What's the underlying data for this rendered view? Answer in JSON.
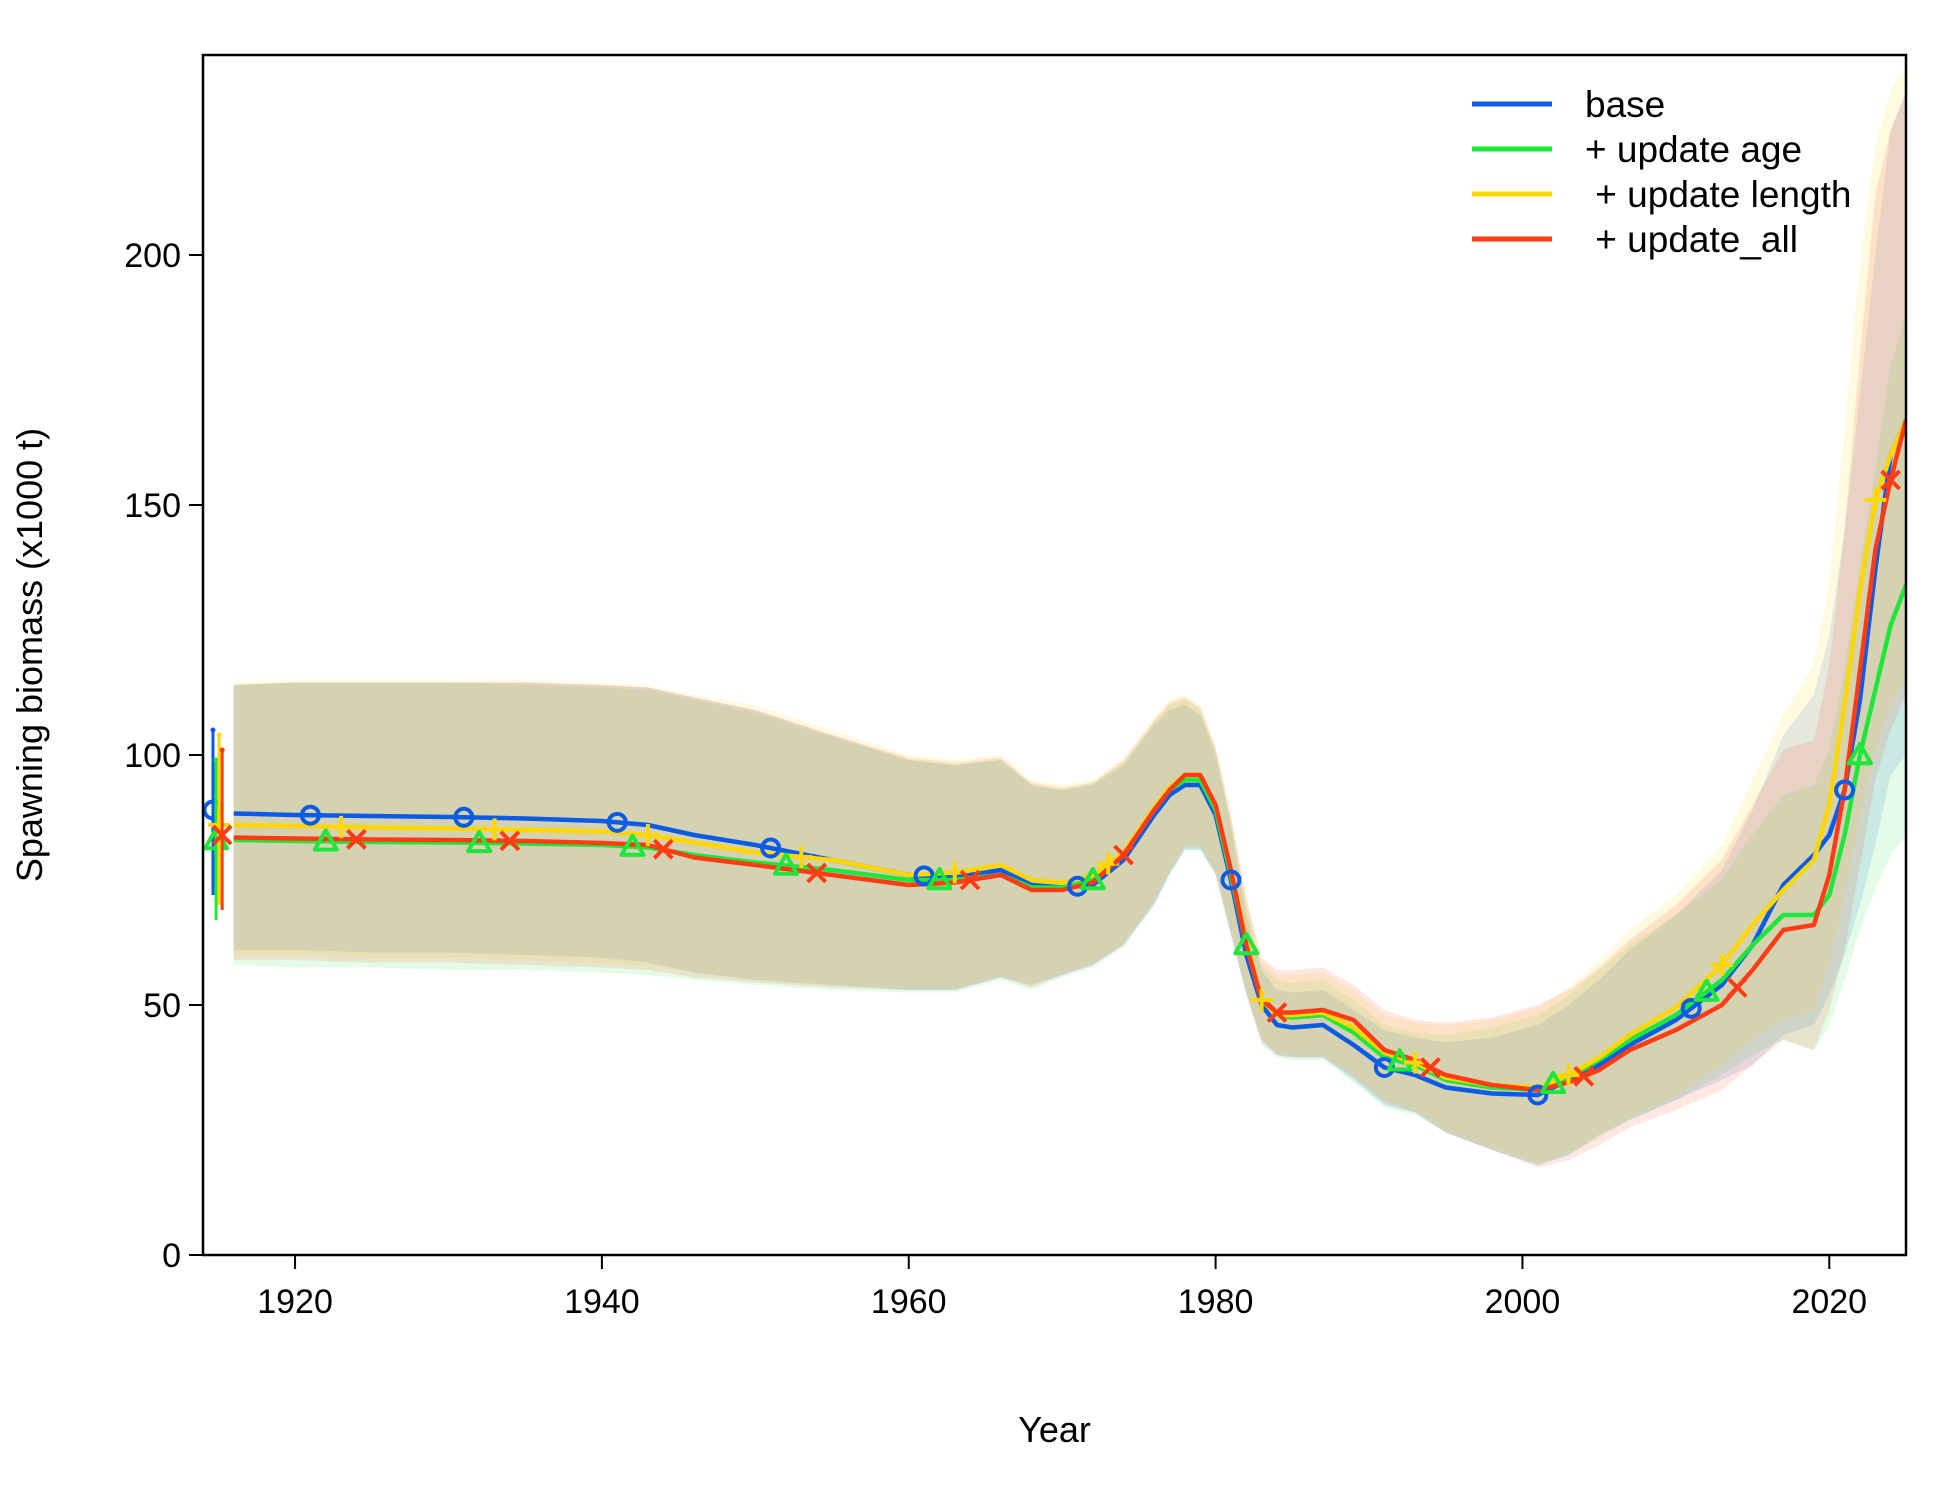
{
  "chart_data": {
    "type": "line",
    "xlabel": "Year",
    "ylabel": "Spawning biomass (x1000 t)",
    "xlim": [
      1914,
      2025
    ],
    "ylim": [
      0,
      240
    ],
    "xticks": [
      1920,
      1940,
      1960,
      1980,
      2000,
      2020
    ],
    "yticks": [
      0,
      50,
      100,
      150,
      200
    ],
    "legend_position": "top-right",
    "grid": false,
    "x": [
      1916,
      1920,
      1925,
      1930,
      1935,
      1940,
      1943,
      1946,
      1950,
      1955,
      1960,
      1963,
      1966,
      1968,
      1970,
      1972,
      1974,
      1976,
      1977,
      1978,
      1979,
      1980,
      1981,
      1982,
      1983,
      1984,
      1985,
      1987,
      1989,
      1991,
      1993,
      1995,
      1998,
      2001,
      2003,
      2005,
      2007,
      2010,
      2013,
      2015,
      2017,
      2019,
      2020,
      2021,
      2022,
      2023,
      2024,
      2025
    ],
    "initial_year": 1915,
    "series": [
      {
        "name": "base",
        "color": "#0b5be6",
        "marker": "circle",
        "initial": {
          "value": 89,
          "lower": 72,
          "upper": 105
        },
        "values": [
          88.3,
          88.0,
          87.8,
          87.6,
          87.3,
          86.8,
          86.0,
          84.0,
          82.0,
          79.0,
          76.0,
          75.5,
          77.0,
          74.0,
          73.5,
          74.0,
          79.0,
          88.0,
          92.0,
          94.0,
          94.0,
          88.0,
          75.0,
          60.0,
          50.0,
          46.0,
          45.5,
          46.0,
          42.0,
          37.5,
          36.0,
          33.5,
          32.3,
          32.0,
          35.0,
          38.0,
          42.0,
          47.0,
          54.0,
          62.0,
          74.0,
          80.0,
          84.0,
          93.0,
          111.0,
          137.0,
          160.0,
          167.0
        ],
        "lower": [
          61.0,
          61.0,
          60.5,
          60.5,
          60.0,
          59.5,
          58.5,
          56.5,
          55.0,
          54.0,
          53.0,
          53.0,
          55.5,
          54.0,
          56.0,
          58.0,
          62.0,
          70.0,
          76.0,
          81.0,
          81.0,
          76.0,
          64.0,
          52.0,
          43.0,
          40.0,
          39.5,
          39.5,
          35.0,
          30.0,
          28.5,
          24.5,
          21.0,
          18.0,
          20.0,
          24.0,
          27.0,
          31.0,
          35.0,
          38.0,
          44.0,
          46.0,
          52.0,
          60.0,
          70.0,
          82.0,
          96.0,
          100.0
        ],
        "upper": [
          114.0,
          114.5,
          114.5,
          114.5,
          114.5,
          114.0,
          113.5,
          111.5,
          109.0,
          104.0,
          99.0,
          98.0,
          99.0,
          94.0,
          93.0,
          94.0,
          98.0,
          106.0,
          109.0,
          110.0,
          108.0,
          100.0,
          86.0,
          68.0,
          57.0,
          53.0,
          52.5,
          53.0,
          49.0,
          45.0,
          43.5,
          42.5,
          43.5,
          46.0,
          50.0,
          55.0,
          61.0,
          68.0,
          77.0,
          89.0,
          104.0,
          112.0,
          124.0,
          145.0,
          172.0,
          200.0,
          225.0,
          233.0
        ]
      },
      {
        "name": "+ update age",
        "color": "#1ee63c",
        "marker": "triangle",
        "initial": {
          "value": 83,
          "lower": 67,
          "upper": 99
        },
        "values": [
          83.0,
          82.8,
          82.6,
          82.5,
          82.3,
          82.0,
          81.5,
          80.0,
          78.5,
          77.0,
          75.0,
          75.0,
          76.0,
          73.5,
          73.5,
          75.0,
          80.0,
          89.0,
          93.0,
          95.0,
          95.0,
          89.0,
          76.0,
          62.0,
          51.0,
          48.0,
          47.5,
          48.0,
          44.5,
          39.5,
          38.0,
          35.0,
          33.5,
          33.0,
          35.5,
          39.0,
          43.0,
          48.0,
          55.0,
          62.0,
          68.0,
          68.0,
          72.0,
          84.0,
          100.0,
          113.0,
          126.0,
          134.0
        ],
        "lower": [
          58.0,
          57.5,
          57.5,
          57.0,
          57.0,
          56.5,
          56.0,
          55.0,
          54.0,
          53.0,
          52.5,
          52.5,
          55.0,
          53.0,
          55.5,
          57.5,
          61.5,
          70.0,
          76.0,
          81.0,
          81.0,
          76.0,
          64.0,
          52.0,
          42.0,
          39.5,
          39.0,
          39.0,
          34.5,
          29.5,
          28.0,
          24.5,
          21.0,
          18.0,
          20.0,
          23.5,
          27.0,
          31.0,
          36.0,
          40.0,
          43.0,
          41.0,
          46.0,
          55.0,
          65.0,
          73.0,
          80.0,
          84.0
        ],
        "upper": [
          114.0,
          114.5,
          114.5,
          114.5,
          114.0,
          113.5,
          113.0,
          111.0,
          108.5,
          103.5,
          99.0,
          98.0,
          99.0,
          94.0,
          93.0,
          94.5,
          98.5,
          106.5,
          110.0,
          111.0,
          109.0,
          101.0,
          87.0,
          70.0,
          58.0,
          55.0,
          54.5,
          55.0,
          51.0,
          46.0,
          44.5,
          44.0,
          45.5,
          48.0,
          52.0,
          57.0,
          62.0,
          68.0,
          75.0,
          84.0,
          92.0,
          94.0,
          101.0,
          117.0,
          138.0,
          157.0,
          178.0,
          188.0
        ]
      },
      {
        "name": " + update length",
        "color": "#ffd700",
        "marker": "plus",
        "initial": {
          "value": 86,
          "lower": 70,
          "upper": 104
        },
        "values": [
          86.0,
          85.8,
          85.5,
          85.3,
          85.0,
          84.7,
          84.0,
          82.5,
          80.5,
          79.0,
          76.0,
          76.5,
          78.0,
          75.0,
          74.5,
          76.0,
          80.5,
          89.5,
          93.5,
          96.0,
          96.0,
          90.0,
          77.0,
          63.0,
          51.0,
          48.0,
          48.0,
          48.5,
          45.5,
          40.5,
          38.5,
          35.5,
          34.0,
          33.5,
          36.0,
          39.5,
          44.0,
          49.5,
          58.0,
          66.0,
          73.0,
          79.0,
          90.0,
          110.0,
          133.0,
          151.0,
          160.0,
          167.0
        ],
        "lower": [
          60.0,
          60.0,
          59.5,
          59.5,
          59.0,
          58.5,
          58.0,
          56.5,
          55.0,
          54.0,
          53.5,
          53.5,
          56.0,
          54.0,
          56.5,
          58.5,
          62.5,
          71.0,
          77.0,
          82.0,
          82.0,
          77.0,
          65.0,
          53.0,
          43.0,
          40.5,
          40.0,
          40.0,
          36.0,
          31.0,
          29.0,
          25.0,
          21.5,
          18.5,
          20.5,
          24.0,
          27.5,
          32.0,
          38.0,
          43.0,
          47.0,
          49.0,
          58.0,
          72.0,
          88.0,
          101.0,
          110.0,
          115.0
        ],
        "upper": [
          114.5,
          115.0,
          115.0,
          115.0,
          115.0,
          114.5,
          114.0,
          112.0,
          110.0,
          105.0,
          100.0,
          99.0,
          100.0,
          95.0,
          94.0,
          95.0,
          99.5,
          107.5,
          111.0,
          112.0,
          110.0,
          102.0,
          88.0,
          71.0,
          59.0,
          56.0,
          56.0,
          56.5,
          53.0,
          48.0,
          46.5,
          46.0,
          47.0,
          49.5,
          53.5,
          59.0,
          65.0,
          72.0,
          82.0,
          95.0,
          108.0,
          118.0,
          135.0,
          165.0,
          198.0,
          222.0,
          233.0,
          238.0
        ]
      },
      {
        "name": " + update_all",
        "color": "#ff3c14",
        "marker": "cross",
        "initial": {
          "value": 84,
          "lower": 69,
          "upper": 101
        },
        "values": [
          83.5,
          83.3,
          83.1,
          83.0,
          82.8,
          82.4,
          82.0,
          79.5,
          78.0,
          76.0,
          74.0,
          74.5,
          76.0,
          73.0,
          73.0,
          74.5,
          80.0,
          89.0,
          93.0,
          96.0,
          96.0,
          90.0,
          77.0,
          62.0,
          51.0,
          48.5,
          48.5,
          49.0,
          47.0,
          41.0,
          39.0,
          36.0,
          34.0,
          33.0,
          34.5,
          37.0,
          41.0,
          45.0,
          50.0,
          57.0,
          65.0,
          66.0,
          76.0,
          93.0,
          117.0,
          141.0,
          155.0,
          167.0
        ],
        "lower": [
          59.0,
          59.0,
          58.5,
          58.5,
          58.0,
          57.5,
          57.0,
          55.5,
          54.5,
          53.5,
          53.0,
          53.0,
          55.5,
          53.5,
          56.0,
          58.0,
          62.0,
          70.5,
          76.5,
          81.5,
          81.5,
          76.5,
          64.5,
          52.5,
          42.5,
          40.0,
          39.5,
          39.5,
          35.5,
          30.5,
          28.5,
          24.5,
          21.0,
          17.5,
          19.0,
          22.0,
          25.5,
          29.0,
          33.0,
          38.0,
          43.0,
          41.0,
          49.0,
          61.0,
          78.0,
          95.0,
          105.0,
          112.0
        ],
        "upper": [
          114.0,
          114.5,
          114.5,
          114.5,
          114.5,
          114.0,
          113.5,
          111.5,
          109.0,
          104.0,
          99.5,
          98.5,
          99.5,
          94.5,
          93.5,
          94.5,
          99.0,
          107.0,
          110.5,
          111.5,
          109.5,
          101.5,
          88.0,
          71.5,
          59.5,
          57.0,
          57.0,
          57.5,
          54.0,
          49.0,
          47.0,
          46.5,
          47.5,
          50.0,
          53.0,
          57.5,
          63.0,
          70.0,
          79.0,
          90.0,
          101.0,
          103.0,
          118.0,
          145.0,
          180.0,
          212.0,
          225.0,
          232.0
        ]
      }
    ]
  }
}
